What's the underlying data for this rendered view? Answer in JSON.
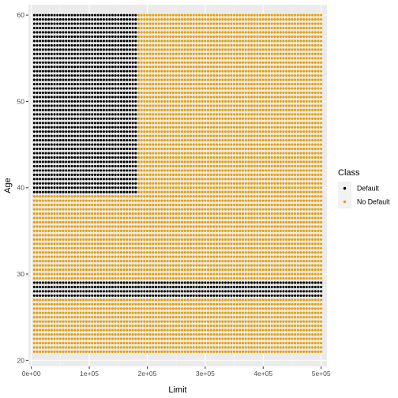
{
  "chart_data": {
    "type": "scatter",
    "xlabel": "Limit",
    "ylabel": "Age",
    "xlim": [
      -5000,
      510000
    ],
    "ylim": [
      19.3,
      61.2
    ],
    "x_ticks": [
      0,
      100000,
      200000,
      300000,
      400000,
      500000
    ],
    "x_tick_labels": [
      "0e+00",
      "1e+05",
      "2e+05",
      "3e+05",
      "4e+05",
      "5e+05"
    ],
    "y_ticks": [
      20,
      30,
      40,
      50,
      60
    ],
    "y_tick_labels": [
      "20",
      "30",
      "40",
      "50",
      "60"
    ],
    "grid": true,
    "grid_x": {
      "start": 5000,
      "end": 500000,
      "step": 5000
    },
    "grid_y": {
      "start": 21,
      "end": 60,
      "step": 0.5
    },
    "regions": [
      {
        "class": "Default",
        "x_range": [
          5000,
          180000
        ],
        "y_range": [
          39.5,
          60
        ]
      },
      {
        "class": "Default",
        "x_range": [
          5000,
          500000
        ],
        "y_range": [
          27.5,
          29
        ]
      }
    ],
    "default_class": "No Default",
    "legend": {
      "title": "Class",
      "placement": "right",
      "entries": [
        {
          "label": "Default",
          "color": "#000000"
        },
        {
          "label": "No Default",
          "color": "#E69F00"
        }
      ]
    }
  }
}
